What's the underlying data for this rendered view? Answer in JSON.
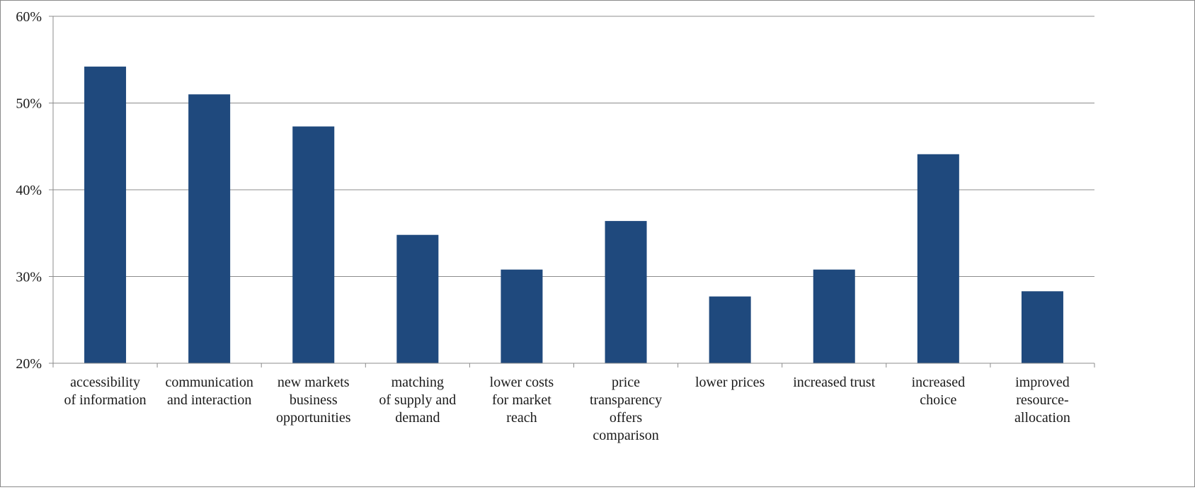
{
  "chart_data": {
    "type": "bar",
    "title": "",
    "xlabel": "",
    "ylabel": "",
    "categories": [
      [
        "accessibility",
        "of information"
      ],
      [
        "communication",
        "and interaction"
      ],
      [
        "new markets",
        "business",
        "opportunities"
      ],
      [
        "matching",
        "of supply and",
        "demand"
      ],
      [
        "lower costs",
        "for market",
        "reach"
      ],
      [
        "price",
        "transparency",
        "offers",
        "comparison"
      ],
      [
        "lower prices"
      ],
      [
        "increased trust"
      ],
      [
        "increased",
        "choice"
      ],
      [
        "improved",
        "resource-",
        "allocation"
      ]
    ],
    "series": [
      {
        "values": [
          54.2,
          51.0,
          47.3,
          34.8,
          30.8,
          36.4,
          27.7,
          30.8,
          44.1,
          28.3
        ]
      }
    ],
    "ylim": [
      20,
      60
    ],
    "yticks": [
      20,
      30,
      40,
      50,
      60
    ],
    "ytick_labels": [
      "20%",
      "30%",
      "40%",
      "50%",
      "60%"
    ],
    "grid": true,
    "legend": "none",
    "colors": {
      "bar": "#1f497d",
      "grid": "#8c8c8c",
      "axis": "#8c8c8c"
    }
  }
}
